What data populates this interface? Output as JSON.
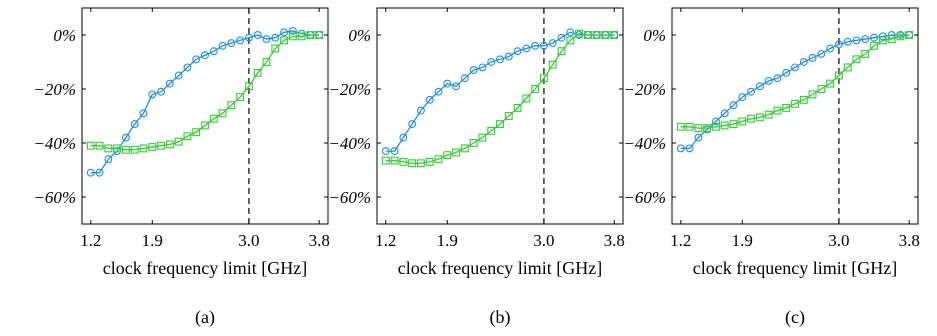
{
  "figure": {
    "panels": [
      {
        "caption": "(a)"
      },
      {
        "caption": "(b)"
      },
      {
        "caption": "(c)"
      }
    ]
  },
  "colors": {
    "series_blue": "#1f8fe0",
    "series_green": "#33cc33",
    "reference_line": "#000000",
    "axis": "#000000"
  },
  "chart_data": [
    {
      "type": "line",
      "caption": "(a)",
      "xlabel": "clock frequency limit [GHz]",
      "ylabel": "",
      "xlim": [
        1.1,
        3.9
      ],
      "ylim": [
        -70,
        10
      ],
      "xticks": [
        1.2,
        1.9,
        3.0,
        3.8
      ],
      "xtick_labels": [
        "1.2",
        "1.9",
        "3.0",
        "3.8"
      ],
      "yticks": [
        0,
        -20,
        -40,
        -60
      ],
      "ytick_labels": [
        "0%",
        "−20%",
        "−40%",
        "−60%"
      ],
      "reference_x": 3.0,
      "grid": false,
      "x": [
        1.2,
        1.3,
        1.4,
        1.5,
        1.6,
        1.7,
        1.8,
        1.9,
        2.0,
        2.1,
        2.2,
        2.3,
        2.4,
        2.5,
        2.6,
        2.7,
        2.8,
        2.9,
        3.0,
        3.1,
        3.2,
        3.3,
        3.4,
        3.5,
        3.6,
        3.7,
        3.8
      ],
      "series": [
        {
          "marker": "circle",
          "color": "#1f8fe0",
          "values": [
            -51,
            -51,
            -46,
            -43,
            -38,
            -33,
            -29,
            -22,
            -21,
            -18,
            -15,
            -12,
            -9,
            -7.5,
            -6,
            -4,
            -3,
            -2,
            -1,
            0,
            -1.5,
            -1,
            1,
            1.5,
            0.5,
            0,
            0
          ]
        },
        {
          "marker": "square",
          "color": "#33cc33",
          "values": [
            -41,
            -41,
            -42,
            -42,
            -42.5,
            -42.5,
            -42,
            -41.5,
            -41,
            -40.5,
            -39.5,
            -37.5,
            -36,
            -33.5,
            -31,
            -29,
            -26,
            -23,
            -19,
            -14,
            -10,
            -5,
            -2,
            -0.5,
            -0.5,
            0,
            0
          ]
        }
      ]
    },
    {
      "type": "line",
      "caption": "(b)",
      "xlabel": "clock frequency limit [GHz]",
      "ylabel": "",
      "xlim": [
        1.1,
        3.9
      ],
      "ylim": [
        -70,
        10
      ],
      "xticks": [
        1.2,
        1.9,
        3.0,
        3.8
      ],
      "xtick_labels": [
        "1.2",
        "1.9",
        "3.0",
        "3.8"
      ],
      "yticks": [
        0,
        -20,
        -40,
        -60
      ],
      "ytick_labels": [
        "0%",
        "−20%",
        "−40%",
        "−60%"
      ],
      "reference_x": 3.0,
      "grid": false,
      "x": [
        1.2,
        1.3,
        1.4,
        1.5,
        1.6,
        1.7,
        1.8,
        1.9,
        2.0,
        2.1,
        2.2,
        2.3,
        2.4,
        2.5,
        2.6,
        2.7,
        2.8,
        2.9,
        3.0,
        3.1,
        3.2,
        3.3,
        3.4,
        3.5,
        3.6,
        3.7,
        3.8
      ],
      "series": [
        {
          "marker": "circle",
          "color": "#1f8fe0",
          "values": [
            -43,
            -43,
            -38,
            -33,
            -28,
            -24,
            -21,
            -18,
            -19,
            -16,
            -13,
            -12,
            -10,
            -9,
            -8,
            -6,
            -5,
            -4,
            -4,
            -3,
            -1,
            1,
            0,
            0,
            0,
            0,
            0
          ]
        },
        {
          "marker": "square",
          "color": "#33cc33",
          "values": [
            -46.5,
            -46.5,
            -47,
            -47.5,
            -47.5,
            -47,
            -46,
            -44.5,
            -43.5,
            -42,
            -40,
            -38,
            -35.5,
            -33,
            -30,
            -27,
            -23.5,
            -20,
            -16,
            -11,
            -6,
            -2,
            0.5,
            0,
            0,
            0,
            0
          ]
        }
      ]
    },
    {
      "type": "line",
      "caption": "(c)",
      "xlabel": "clock frequency limit [GHz]",
      "ylabel": "",
      "xlim": [
        1.1,
        3.9
      ],
      "ylim": [
        -70,
        10
      ],
      "xticks": [
        1.2,
        1.9,
        3.0,
        3.8
      ],
      "xtick_labels": [
        "1.2",
        "1.9",
        "3.0",
        "3.8"
      ],
      "yticks": [
        0,
        -20,
        -40,
        -60
      ],
      "ytick_labels": [
        "0%",
        "−20%",
        "−40%",
        "−60%"
      ],
      "reference_x": 3.0,
      "grid": false,
      "x": [
        1.2,
        1.3,
        1.4,
        1.5,
        1.6,
        1.7,
        1.8,
        1.9,
        2.0,
        2.1,
        2.2,
        2.3,
        2.4,
        2.5,
        2.6,
        2.7,
        2.8,
        2.9,
        3.0,
        3.1,
        3.2,
        3.3,
        3.4,
        3.5,
        3.6,
        3.7,
        3.8
      ],
      "series": [
        {
          "marker": "circle",
          "color": "#1f8fe0",
          "values": [
            -42,
            -42,
            -38,
            -35,
            -32,
            -29,
            -26,
            -23,
            -21,
            -19,
            -17,
            -16,
            -14,
            -12,
            -10,
            -8.5,
            -7,
            -5,
            -3.5,
            -2.5,
            -2,
            -1.5,
            -1,
            -0.5,
            0,
            0,
            0
          ]
        },
        {
          "marker": "square",
          "color": "#33cc33",
          "values": [
            -34,
            -34,
            -34.5,
            -34.5,
            -34,
            -33.5,
            -33,
            -32,
            -31,
            -30.5,
            -29.5,
            -28,
            -27,
            -25.5,
            -24,
            -22,
            -20,
            -18,
            -15,
            -12,
            -9,
            -7,
            -4,
            -2,
            -1.5,
            -0.5,
            0
          ]
        }
      ]
    }
  ]
}
